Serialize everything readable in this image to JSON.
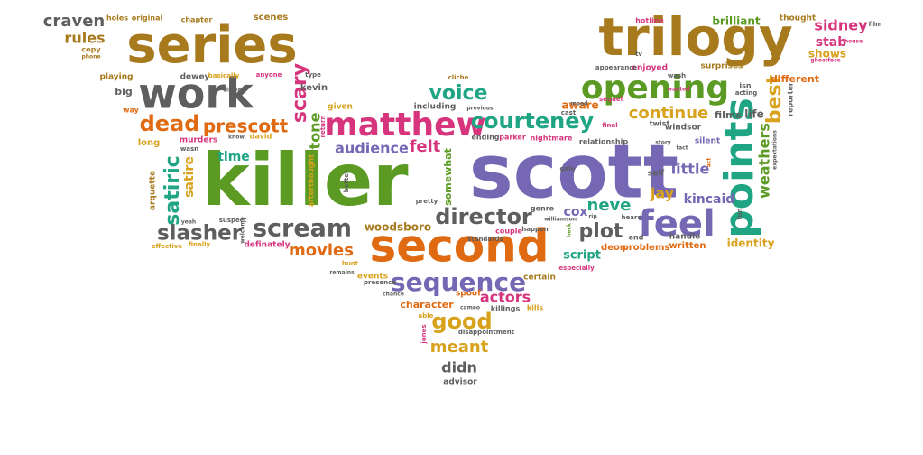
{
  "colors": {
    "brown": "#a87a1e",
    "gray": "#5e5e5e",
    "green": "#5b9a23",
    "orange": "#e06a12",
    "pink": "#d6357d",
    "purple": "#7567b4",
    "teal": "#1fa583",
    "gold": "#d8a21c",
    "darkgreen": "#3f7d16"
  },
  "words": [
    "killer",
    "scott",
    "second",
    "trilogy",
    "series",
    "work",
    "matthew",
    "opening",
    "feel",
    "points",
    "sequence",
    "scream",
    "slasher",
    "courteney",
    "director",
    "dead",
    "prescott",
    "satiric",
    "voice",
    "plot",
    "good",
    "best",
    "scary",
    "sidney",
    "weathers",
    "continue",
    "neve",
    "movies",
    "actors",
    "meant",
    "felt",
    "audience",
    "didn",
    "craven",
    "rules",
    "woodsboro",
    "little",
    "jay",
    "kincaid",
    "identity",
    "cox",
    "time",
    "tone",
    "satire",
    "script",
    "stab",
    "brilliant",
    "different",
    "films",
    "life",
    "aware",
    "character",
    "somewhat",
    "deon",
    "problems",
    "written",
    "kevin",
    "dewey",
    "big",
    "playing",
    "holes",
    "original",
    "chapter",
    "scenes",
    "shows",
    "surprises",
    "enjoyed",
    "hotline",
    "thought",
    "silent",
    "handle",
    "windsor",
    "nightmare",
    "relationship",
    "certain",
    "spoof",
    "kills",
    "events",
    "killings",
    "advisor",
    "arquette",
    "murders",
    "david",
    "long",
    "given",
    "including",
    "ending",
    "parker",
    "genre",
    "couple",
    "effective",
    "finally",
    "definately",
    "afterthought",
    "hunt",
    "self",
    "twist",
    "end",
    "standards",
    "fun",
    "copy",
    "phone",
    "way",
    "basically",
    "anyone",
    "type",
    "cliche",
    "previous",
    "return",
    "reporter",
    "appearance",
    "wash",
    "mood",
    "final",
    "sequel",
    "cast",
    "acting",
    "isn",
    "film",
    "house",
    "ghostface",
    "gale",
    "expectations",
    "fact",
    "heard",
    "disappointment",
    "jones",
    "able",
    "cameo",
    "especially",
    "presence",
    "chance",
    "remains",
    "pretty",
    "happen",
    "heck",
    "act",
    "know",
    "wasn",
    "tv",
    "sister",
    "story",
    "williamson",
    "rip",
    "wanted",
    "suspect",
    "welcome",
    "yeah",
    "better",
    "actress"
  ]
}
